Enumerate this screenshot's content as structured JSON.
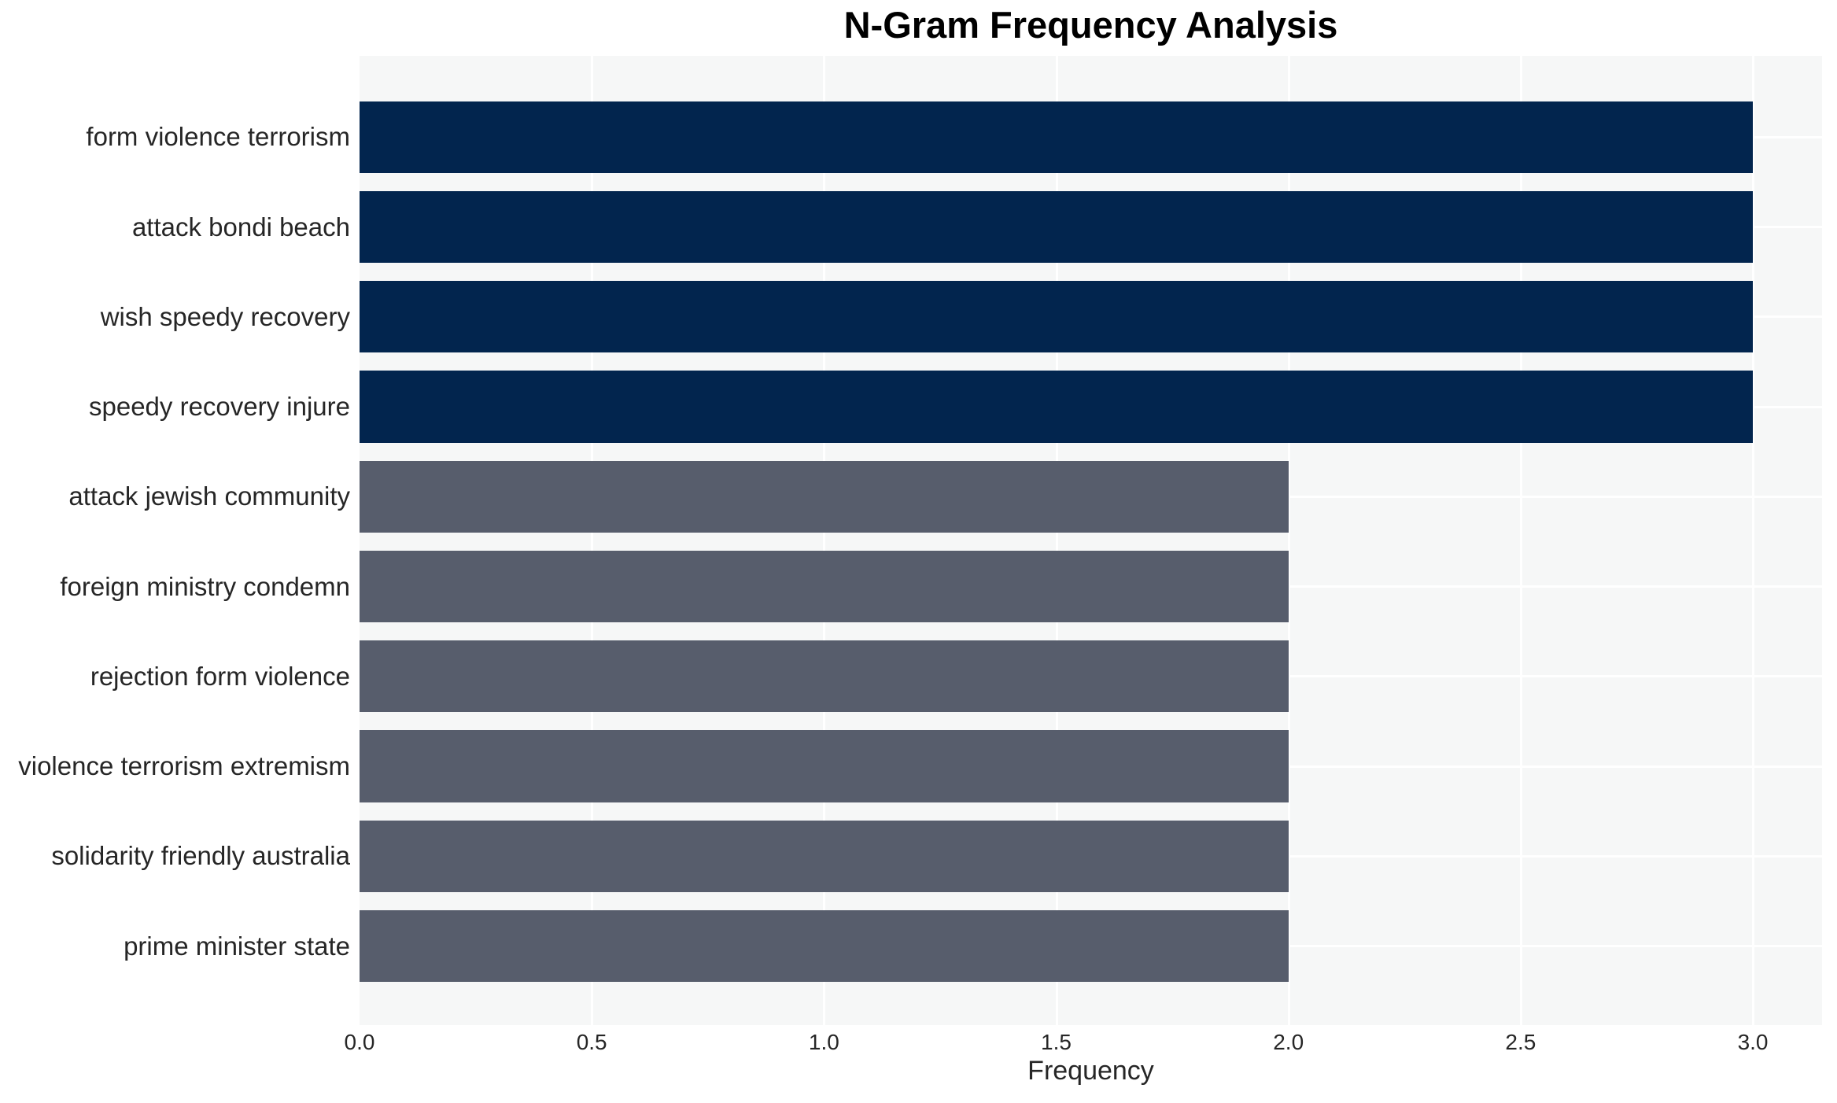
{
  "chart_data": {
    "type": "bar",
    "orientation": "horizontal",
    "title": "N-Gram Frequency Analysis",
    "xlabel": "Frequency",
    "ylabel": "",
    "categories": [
      "form violence terrorism",
      "attack bondi beach",
      "wish speedy recovery",
      "speedy recovery injure",
      "attack jewish community",
      "foreign ministry condemn",
      "rejection form violence",
      "violence terrorism extremism",
      "solidarity friendly australia",
      "prime minister state"
    ],
    "values": [
      3,
      3,
      3,
      3,
      2,
      2,
      2,
      2,
      2,
      2
    ],
    "bar_colors": [
      "#02254e",
      "#02254e",
      "#02254e",
      "#02254e",
      "#575d6c",
      "#575d6c",
      "#575d6c",
      "#575d6c",
      "#575d6c",
      "#575d6c"
    ],
    "xlim": [
      0,
      3.149
    ],
    "xticks": [
      0.0,
      0.5,
      1.0,
      1.5,
      2.0,
      2.5,
      3.0
    ],
    "xtick_labels": [
      "0.0",
      "0.5",
      "1.0",
      "1.5",
      "2.0",
      "2.5",
      "3.0"
    ],
    "grid": true,
    "legend": false,
    "colors": {
      "plot_background": "#f6f7f7",
      "gridline": "#ffffff",
      "title_text": "#000000",
      "axis_text": "#262626",
      "bar_high": "#02254e",
      "bar_low": "#575d6c"
    }
  }
}
